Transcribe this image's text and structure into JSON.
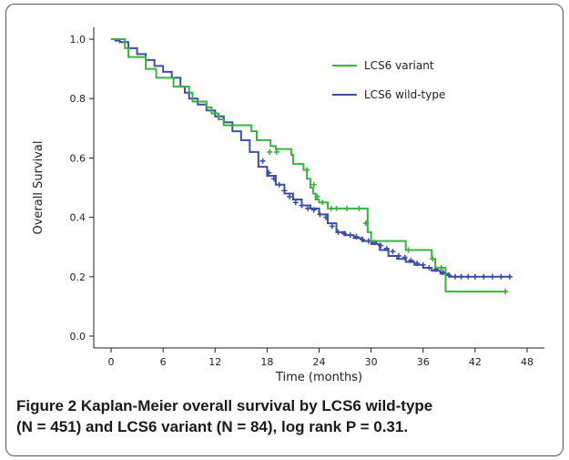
{
  "caption": {
    "label": "Figure 2",
    "line1": "Kaplan-Meier overall survival by LCS6 wild-type",
    "line2": "(N = 451) and LCS6 variant (N = 84), log rank P = 0.31."
  },
  "chart_data": {
    "type": "line",
    "subtype": "kaplan-meier step",
    "xlabel": "Time (months)",
    "ylabel": "Overall Survival",
    "xlim": [
      -2,
      50
    ],
    "ylim": [
      -0.04,
      1.04
    ],
    "xticks": [
      0,
      6,
      12,
      18,
      24,
      30,
      36,
      42,
      48
    ],
    "yticks": [
      0.0,
      0.2,
      0.4,
      0.6,
      0.8,
      1.0
    ],
    "grid": false,
    "legend_position": "top-right",
    "series": [
      {
        "name": "LCS6 variant",
        "color": "#3cb043",
        "x": [
          0,
          1.6,
          2.0,
          4.0,
          5.2,
          7.2,
          9.0,
          9.4,
          11.0,
          11.6,
          12.4,
          13.0,
          16.2,
          16.8,
          18.4,
          19.0,
          20.8,
          21.0,
          22.2,
          22.6,
          23.0,
          23.3,
          23.6,
          24.0,
          25.0,
          29.6,
          30.0,
          34.0,
          37.0,
          37.4,
          38.6,
          45.5
        ],
        "y": [
          1.0,
          0.97,
          0.94,
          0.9,
          0.87,
          0.84,
          0.82,
          0.79,
          0.77,
          0.75,
          0.73,
          0.71,
          0.69,
          0.66,
          0.64,
          0.63,
          0.61,
          0.58,
          0.56,
          0.53,
          0.5,
          0.48,
          0.46,
          0.45,
          0.43,
          0.35,
          0.32,
          0.29,
          0.26,
          0.23,
          0.15,
          0.15
        ],
        "censor_x": [
          18.3,
          19.1,
          22.6,
          23.4,
          23.8,
          24.4,
          25.4,
          26.0,
          27.2,
          28.6,
          29.4,
          34.3,
          37.1,
          38.1,
          45.5
        ],
        "censor_y": [
          0.62,
          0.62,
          0.56,
          0.51,
          0.47,
          0.45,
          0.43,
          0.43,
          0.43,
          0.43,
          0.38,
          0.29,
          0.26,
          0.23,
          0.15
        ]
      },
      {
        "name": "LCS6 wild-type",
        "color": "#3d4ea3",
        "x": [
          0,
          0.5,
          1.0,
          2.0,
          3.0,
          4.0,
          5.0,
          6.0,
          7.0,
          8.0,
          8.5,
          9.0,
          10.0,
          11.0,
          12.0,
          13.0,
          14.0,
          15.0,
          16.0,
          17.0,
          18.0,
          19.0,
          20.0,
          21.0,
          22.0,
          23.0,
          24.0,
          25.0,
          26.0,
          27.0,
          28.0,
          29.0,
          30.0,
          31.0,
          32.0,
          33.0,
          34.0,
          35.0,
          36.0,
          37.0,
          38.0,
          39.0,
          40.0,
          46.0
        ],
        "y": [
          1.0,
          0.995,
          0.99,
          0.97,
          0.95,
          0.93,
          0.91,
          0.89,
          0.87,
          0.84,
          0.82,
          0.8,
          0.78,
          0.76,
          0.74,
          0.72,
          0.69,
          0.66,
          0.62,
          0.57,
          0.54,
          0.51,
          0.48,
          0.46,
          0.44,
          0.43,
          0.41,
          0.38,
          0.35,
          0.34,
          0.33,
          0.32,
          0.31,
          0.29,
          0.27,
          0.26,
          0.25,
          0.24,
          0.23,
          0.22,
          0.21,
          0.2,
          0.2,
          0.2
        ],
        "censor_x": [
          17.5,
          18.2,
          18.8,
          19.4,
          20.0,
          20.6,
          21.3,
          22.0,
          22.7,
          23.4,
          24.1,
          24.8,
          25.5,
          26.2,
          26.9,
          27.6,
          28.3,
          29.0,
          29.7,
          30.4,
          31.1,
          31.8,
          32.5,
          33.2,
          33.9,
          34.6,
          35.3,
          36.0,
          36.7,
          37.5,
          38.3,
          39.0,
          39.7,
          40.4,
          41.2,
          42.0,
          43.0,
          44.0,
          45.0,
          46.0
        ],
        "censor_y": [
          0.59,
          0.55,
          0.53,
          0.51,
          0.49,
          0.47,
          0.45,
          0.44,
          0.43,
          0.425,
          0.41,
          0.4,
          0.37,
          0.35,
          0.345,
          0.34,
          0.335,
          0.325,
          0.32,
          0.315,
          0.305,
          0.295,
          0.285,
          0.27,
          0.265,
          0.255,
          0.245,
          0.24,
          0.23,
          0.225,
          0.215,
          0.205,
          0.2,
          0.2,
          0.2,
          0.2,
          0.2,
          0.2,
          0.2,
          0.2
        ]
      }
    ]
  }
}
